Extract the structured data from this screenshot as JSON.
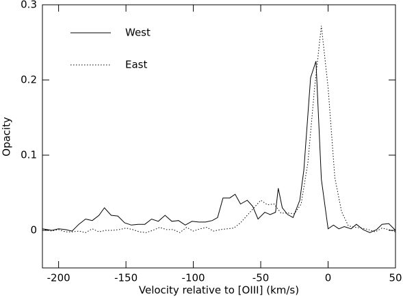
{
  "chart_data": {
    "type": "line",
    "xlabel": "Velocity relative to [OIII]  (km/s)",
    "ylabel": "Opacity",
    "xlim": [
      -212,
      50
    ],
    "xticks": [
      -200,
      -150,
      -100,
      -50,
      0,
      50
    ],
    "ylim": [
      -0.05,
      0.3
    ],
    "yticks": [
      0,
      0.1,
      0.2,
      0.3
    ],
    "legend": "upper-left",
    "series": [
      {
        "name": "West",
        "color": "#000000",
        "linestyle": "solid",
        "x": [
          -212,
          -205,
          -200,
          -195,
          -190,
          -185,
          -180,
          -175,
          -170,
          -166,
          -161,
          -156,
          -151,
          -146,
          -141,
          -136,
          -131,
          -126,
          -121,
          -116,
          -111,
          -106,
          -101,
          -96,
          -91,
          -86,
          -82,
          -78,
          -73,
          -69,
          -65,
          -60,
          -56,
          -52,
          -47,
          -43,
          -39,
          -37,
          -34,
          -30,
          -26,
          -21,
          -18,
          -13,
          -9,
          -5,
          0,
          4,
          8,
          12,
          17,
          21,
          26,
          31,
          36,
          40,
          45,
          50
        ],
        "values": [
          0.002,
          0,
          0.002,
          0.001,
          -0.001,
          0.008,
          0.015,
          0.013,
          0.02,
          0.03,
          0.02,
          0.019,
          0.01,
          0.007,
          0.008,
          0.008,
          0.015,
          0.012,
          0.02,
          0.012,
          0.013,
          0.007,
          0.012,
          0.011,
          0.011,
          0.013,
          0.017,
          0.043,
          0.043,
          0.048,
          0.035,
          0.04,
          0.032,
          0.015,
          0.024,
          0.021,
          0.024,
          0.056,
          0.03,
          0.021,
          0.017,
          0.04,
          0.08,
          0.203,
          0.225,
          0.068,
          0.002,
          0.007,
          0.002,
          0.005,
          0.002,
          0.008,
          0.001,
          -0.003,
          0.001,
          0.008,
          0.009,
          0
        ]
      },
      {
        "name": "East",
        "color": "#000000",
        "linestyle": "dotted",
        "x": [
          -210,
          -205,
          -200,
          -195,
          -190,
          -185,
          -180,
          -175,
          -170,
          -165,
          -160,
          -155,
          -150,
          -145,
          -140,
          -135,
          -130,
          -125,
          -120,
          -115,
          -110,
          -105,
          -100,
          -95,
          -90,
          -85,
          -80,
          -75,
          -70,
          -65,
          -60,
          -55,
          -50,
          -45,
          -40,
          -35,
          -30,
          -25,
          -20,
          -15,
          -10,
          -5,
          0,
          5,
          10,
          15,
          20,
          25,
          30,
          35,
          40,
          45,
          50
        ],
        "values": [
          0.001,
          -0.001,
          0.001,
          -0.002,
          -0.002,
          -0.001,
          -0.003,
          0.002,
          -0.002,
          0,
          0,
          0.001,
          0.003,
          0.001,
          -0.002,
          -0.003,
          0,
          0.004,
          0.001,
          0.001,
          -0.003,
          0.004,
          -0.001,
          0.002,
          0.004,
          -0.001,
          0.001,
          0.002,
          0.003,
          0.01,
          0.02,
          0.03,
          0.04,
          0.034,
          0.035,
          0.023,
          0.023,
          0.022,
          0.035,
          0.09,
          0.19,
          0.272,
          0.19,
          0.07,
          0.025,
          0.006,
          0.004,
          0.003,
          0.001,
          -0.002,
          0.003,
          0.001,
          -0.002
        ]
      }
    ]
  }
}
